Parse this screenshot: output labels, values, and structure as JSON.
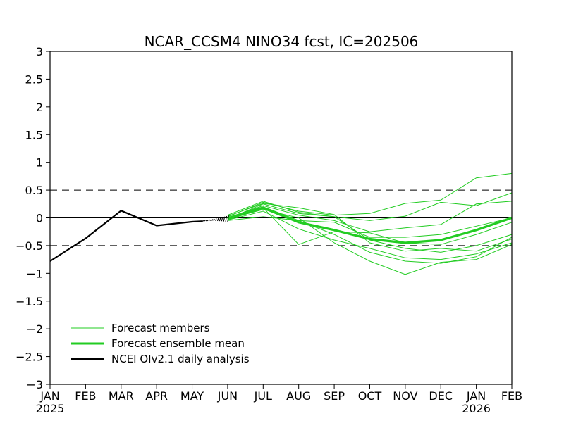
{
  "chart_data": {
    "type": "line",
    "title": "NCAR_CCSM4 NINO34 fcst, IC=202506",
    "xlabel": "",
    "ylabel": "",
    "x_ticks": [
      {
        "label": "JAN",
        "sub": "2025"
      },
      {
        "label": "FEB",
        "sub": ""
      },
      {
        "label": "MAR",
        "sub": ""
      },
      {
        "label": "APR",
        "sub": ""
      },
      {
        "label": "MAY",
        "sub": ""
      },
      {
        "label": "JUN",
        "sub": ""
      },
      {
        "label": "JUL",
        "sub": ""
      },
      {
        "label": "AUG",
        "sub": ""
      },
      {
        "label": "SEP",
        "sub": ""
      },
      {
        "label": "OCT",
        "sub": ""
      },
      {
        "label": "NOV",
        "sub": ""
      },
      {
        "label": "DEC",
        "sub": ""
      },
      {
        "label": "JAN",
        "sub": "2026"
      },
      {
        "label": "FEB",
        "sub": ""
      }
    ],
    "y_ticks": [
      "3",
      "2.5",
      "2",
      "1.5",
      "1",
      "0.5",
      "0",
      "−0.5",
      "−1",
      "−1.5",
      "−2",
      "−2.5",
      "−3"
    ],
    "y_tick_values": [
      3,
      2.5,
      2,
      1.5,
      1,
      0.5,
      0,
      -0.5,
      -1,
      -1.5,
      -2,
      -2.5,
      -3
    ],
    "ylim": [
      -3,
      3
    ],
    "reference_lines": {
      "dashed": [
        0.5,
        -0.5
      ],
      "solid": [
        0
      ]
    },
    "legend": {
      "placement": "bottom-left",
      "entries": [
        "Forecast members",
        "Forecast ensemble mean",
        "NCEI OIv2.1 daily analysis"
      ]
    },
    "colors": {
      "members": "#22cc22",
      "mean": "#22cc22",
      "analysis": "#000000"
    },
    "analysis": {
      "name": "NCEI OIv2.1 daily analysis",
      "x": [
        0,
        1,
        2,
        3,
        4,
        4.3,
        4.6,
        5.0
      ],
      "y": [
        -0.78,
        -0.37,
        0.13,
        -0.14,
        -0.07,
        -0.06,
        -0.05,
        -0.03
      ]
    },
    "analysis_transition": {
      "x": [
        4.3,
        4.6,
        5.0
      ],
      "y_low": [
        -0.06,
        -0.05,
        -0.07
      ],
      "y_high": [
        -0.05,
        -0.02,
        0.04
      ]
    },
    "ensemble_mean": {
      "name": "Forecast ensemble mean",
      "x": [
        5,
        6,
        7,
        8,
        9,
        10,
        11,
        12,
        13
      ],
      "y": [
        -0.02,
        0.18,
        -0.08,
        -0.22,
        -0.38,
        -0.45,
        -0.4,
        -0.22,
        0.0
      ]
    },
    "members": {
      "name": "Forecast members",
      "x": [
        5,
        6,
        7,
        8,
        9,
        10,
        11,
        12,
        13
      ],
      "series": [
        [
          0.02,
          0.28,
          0.12,
          0.05,
          0.08,
          0.26,
          0.32,
          0.72,
          0.8
        ],
        [
          -0.02,
          0.25,
          0.08,
          0.02,
          -0.05,
          0.03,
          0.28,
          0.22,
          0.45
        ],
        [
          0.0,
          0.22,
          0.05,
          -0.05,
          -0.25,
          -0.18,
          -0.12,
          0.25,
          0.3
        ],
        [
          -0.05,
          0.02,
          -0.05,
          -0.08,
          -0.35,
          -0.35,
          -0.3,
          -0.15,
          0.0
        ],
        [
          -0.03,
          0.18,
          -0.48,
          -0.25,
          -0.27,
          -0.45,
          -0.48,
          -0.3,
          -0.08
        ],
        [
          0.05,
          0.3,
          0.1,
          0.02,
          -0.4,
          -0.55,
          -0.62,
          -0.5,
          -0.3
        ],
        [
          -0.04,
          0.12,
          -0.2,
          -0.4,
          -0.55,
          -0.72,
          -0.75,
          -0.65,
          -0.45
        ],
        [
          0.01,
          0.2,
          -0.05,
          -0.3,
          -0.62,
          -0.78,
          -0.82,
          -0.7,
          -0.35
        ],
        [
          -0.02,
          0.15,
          0.0,
          -0.45,
          -0.78,
          -1.02,
          -0.8,
          -0.75,
          -0.48
        ],
        [
          0.03,
          0.26,
          0.18,
          0.06,
          -0.45,
          -0.6,
          -0.55,
          -0.6,
          -0.38
        ]
      ]
    }
  }
}
